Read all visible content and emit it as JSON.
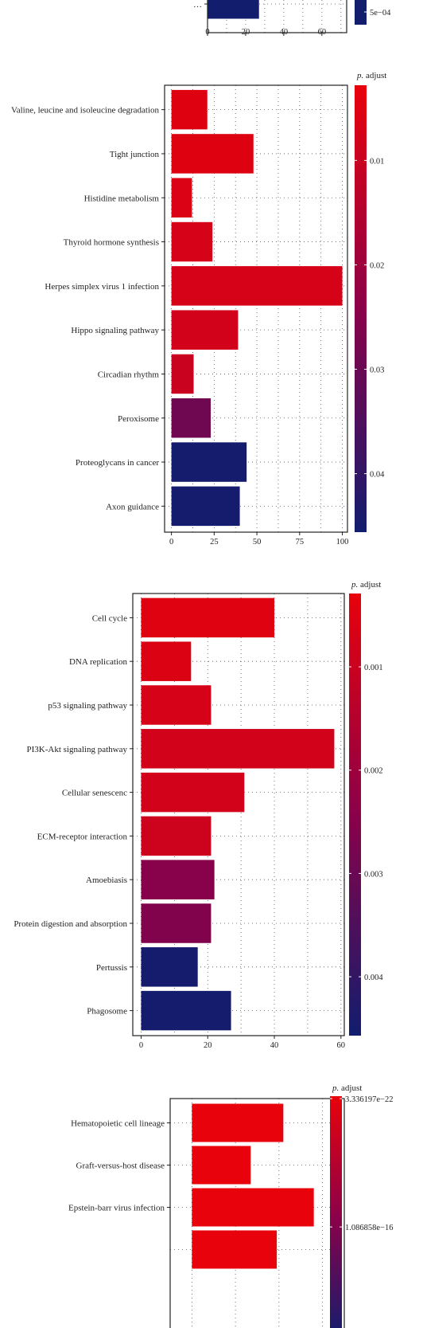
{
  "chart_data": [
    {
      "type": "bar",
      "orientation": "horizontal",
      "partial": true,
      "categories": [
        "…"
      ],
      "values": [
        27
      ],
      "xlim": [
        0,
        73
      ],
      "xticks": [
        0,
        20,
        40,
        60
      ],
      "xtick_labels": [
        "0",
        "20",
        "40",
        "60"
      ],
      "legend_title": "",
      "legend_labels": [
        "5e−04"
      ],
      "color_values": [
        0.0005
      ],
      "grid": true
    },
    {
      "type": "bar",
      "orientation": "horizontal",
      "categories": [
        "Valine, leucine and isoleucine degradation",
        "Tight junction",
        "Histidine metabolism",
        "Thyroid hormone synthesis",
        "Herpes simplex virus 1 infection",
        "Hippo signaling pathway",
        "Circadian rhythm",
        "Peroxisome",
        "Proteoglycans in cancer",
        "Axon guidance"
      ],
      "values": [
        21,
        48,
        12,
        24,
        100,
        39,
        13,
        23,
        44,
        40
      ],
      "color_values": [
        0.005,
        0.005,
        0.006,
        0.007,
        0.007,
        0.008,
        0.01,
        0.029,
        0.045,
        0.045
      ],
      "xlim": [
        -4,
        103
      ],
      "xticks": [
        0,
        25,
        50,
        75,
        100
      ],
      "xtick_labels": [
        "0",
        "25",
        "50",
        "75",
        "100"
      ],
      "legend_title_prefix": "p.",
      "legend_title_rest": " adjust",
      "legend_labels": [
        "0.01",
        "0.02",
        "0.03",
        "0.04"
      ],
      "legend_values": [
        0.01,
        0.02,
        0.03,
        0.04
      ],
      "legend_range": [
        0.0028,
        0.0456
      ],
      "grid": true
    },
    {
      "type": "bar",
      "orientation": "horizontal",
      "categories": [
        "Cell cycle",
        "DNA replication",
        "p53 signaling pathway",
        "PI3K-Akt signaling pathway",
        "Cellular senescenc",
        "ECM-receptor interaction",
        "Amoebiasis",
        "Protein digestion and absorption",
        "Pertussis",
        "Phagosome"
      ],
      "values": [
        40,
        15,
        21,
        58,
        31,
        21,
        22,
        21,
        17,
        27
      ],
      "color_values": [
        0.0005,
        0.0006,
        0.0007,
        0.0008,
        0.0008,
        0.0009,
        0.0025,
        0.0026,
        0.0045,
        0.0045
      ],
      "xlim": [
        -2.5,
        61
      ],
      "xticks": [
        0,
        20,
        40,
        60
      ],
      "xtick_labels": [
        "0",
        "20",
        "40",
        "60"
      ],
      "legend_title_prefix": "p.",
      "legend_title_rest": " adjust",
      "legend_labels": [
        "0.001",
        "0.002",
        "0.003",
        "0.004"
      ],
      "legend_values": [
        0.001,
        0.002,
        0.003,
        0.004
      ],
      "legend_range": [
        0.00029,
        0.00457
      ],
      "grid": true
    },
    {
      "type": "bar",
      "orientation": "horizontal",
      "partial": true,
      "categories": [
        "Hematopoietic cell lineage",
        "Graft-versus-host disease",
        "Epstein-barr virus infection",
        ""
      ],
      "values": [
        42,
        27,
        56,
        39
      ],
      "color_values": [
        0.0,
        0.0,
        0.0,
        0.0
      ],
      "xlim": [
        -10,
        70
      ],
      "legend_title_prefix": "p.",
      "legend_title_rest": " adjust",
      "legend_labels": [
        "3.336197e−22",
        "1.086858e−16"
      ],
      "legend_values": [
        0,
        1
      ],
      "legend_range": [
        0,
        1.5
      ],
      "grid": true
    }
  ],
  "colors": {
    "low": "#e8020b",
    "mid": "#8b0149",
    "high": "#121d6e",
    "text": "#222222"
  }
}
